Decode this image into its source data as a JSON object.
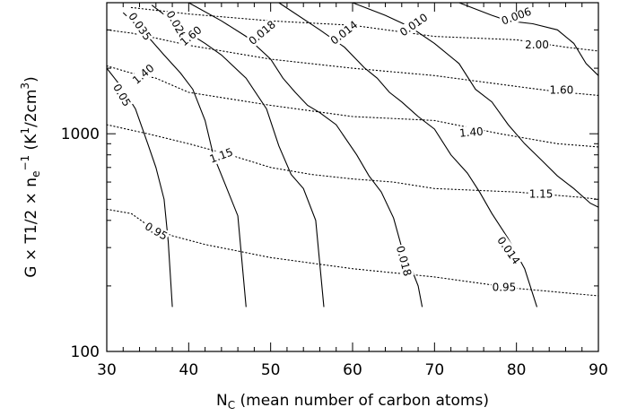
{
  "chart_data": {
    "type": "contour",
    "x_axis": {
      "label_main": "N",
      "label_sub": "C",
      "label_rest": " (mean number of carbon atoms)",
      "range": [
        30,
        90
      ],
      "ticks": [
        30,
        40,
        50,
        60,
        70,
        80,
        90
      ],
      "tick_labels": [
        "30",
        "40",
        "50",
        "60",
        "70",
        "80",
        "90"
      ]
    },
    "y_axis": {
      "label_main": "G × T1/2 × n",
      "label_sub": "e",
      "label_sup1": "−1",
      "label_mid": " (K",
      "label_sup2": "1",
      "label_tail": "/2cm",
      "label_sup3": "3",
      "label_end": ")",
      "scale": "log",
      "range": [
        100,
        4000
      ],
      "ticks": [
        100,
        1000
      ],
      "tick_labels": [
        "100",
        "1000"
      ]
    },
    "series": [
      {
        "style": "solid",
        "label": "0.05",
        "points": [
          [
            30,
            2000
          ],
          [
            32,
            1600
          ],
          [
            33.5,
            1300
          ],
          [
            35,
            900
          ],
          [
            36,
            700
          ],
          [
            37,
            500
          ],
          [
            37.5,
            320
          ],
          [
            38,
            160
          ]
        ],
        "label_at": [
          31.8,
          1500
        ],
        "label_rot": 60
      },
      {
        "style": "solid",
        "label": "0.035",
        "points": [
          [
            32,
            3600
          ],
          [
            35,
            2800
          ],
          [
            37,
            2300
          ],
          [
            39,
            1900
          ],
          [
            40.5,
            1600
          ],
          [
            42,
            1150
          ],
          [
            43,
            800
          ],
          [
            44.5,
            580
          ],
          [
            46,
            420
          ],
          [
            47,
            160
          ]
        ],
        "label_at": [
          34,
          3100
        ],
        "label_rot": 55
      },
      {
        "style": "solid",
        "label": "0.026",
        "points": [
          [
            35.5,
            3900
          ],
          [
            38,
            3300
          ],
          [
            40,
            2900
          ],
          [
            42,
            2600
          ],
          [
            44,
            2300
          ],
          [
            47,
            1800
          ],
          [
            49.5,
            1300
          ],
          [
            51,
            880
          ],
          [
            52.5,
            650
          ],
          [
            54,
            560
          ],
          [
            55.5,
            400
          ],
          [
            56.5,
            160
          ]
        ],
        "label_at": [
          38.5,
          3150
        ],
        "label_rot": 60
      },
      {
        "style": "solid",
        "label": "0.018",
        "points": [
          [
            40,
            4000
          ],
          [
            44,
            3300
          ],
          [
            47,
            2800
          ],
          [
            50,
            2200
          ],
          [
            51.5,
            1800
          ],
          [
            53,
            1550
          ],
          [
            54.5,
            1350
          ],
          [
            56,
            1250
          ],
          [
            58,
            1100
          ],
          [
            60.5,
            800
          ],
          [
            62,
            640
          ],
          [
            63.5,
            540
          ],
          [
            65,
            410
          ],
          [
            66,
            300
          ],
          [
            67,
            250
          ],
          [
            68,
            200
          ],
          [
            68.5,
            160
          ]
        ],
        "label_at": [
          49,
          2900
        ],
        "label_rot": -40,
        "label2": "0.018",
        "label2_at": [
          66.2,
          260
        ],
        "label2_rot": 75
      },
      {
        "style": "solid",
        "label": "0.014",
        "points": [
          [
            51,
            4000
          ],
          [
            56,
            3000
          ],
          [
            59,
            2500
          ],
          [
            61.5,
            2000
          ],
          [
            63,
            1800
          ],
          [
            64.5,
            1550
          ],
          [
            66,
            1400
          ],
          [
            68,
            1200
          ],
          [
            70,
            1050
          ],
          [
            72,
            800
          ],
          [
            74,
            660
          ],
          [
            75.5,
            540
          ],
          [
            77,
            430
          ],
          [
            79,
            330
          ],
          [
            81,
            240
          ],
          [
            82.5,
            160
          ]
        ],
        "label_at": [
          59,
          2900
        ],
        "label_rot": -38,
        "label2": "0.014",
        "label2_at": [
          79,
          290
        ],
        "label2_rot": 55
      },
      {
        "style": "solid",
        "label": "0.010",
        "points": [
          [
            60,
            4000
          ],
          [
            64,
            3500
          ],
          [
            67,
            3100
          ],
          [
            70,
            2600
          ],
          [
            73,
            2100
          ],
          [
            75,
            1600
          ],
          [
            77,
            1400
          ],
          [
            79,
            1100
          ],
          [
            81,
            900
          ],
          [
            83,
            760
          ],
          [
            85,
            640
          ],
          [
            87,
            560
          ],
          [
            89,
            480
          ],
          [
            90,
            460
          ]
        ],
        "label_at": [
          67.5,
          3150
        ],
        "label_rot": -35
      },
      {
        "style": "solid",
        "label": "0.006",
        "points": [
          [
            73,
            4000
          ],
          [
            77,
            3500
          ],
          [
            79,
            3300
          ],
          [
            82,
            3200
          ],
          [
            85,
            3000
          ],
          [
            87,
            2600
          ],
          [
            88.5,
            2100
          ],
          [
            90,
            1850
          ]
        ],
        "label_at": [
          80,
          3450
        ],
        "label_rot": -20
      },
      {
        "style": "dotted",
        "label": "2.00",
        "points": [
          [
            33,
            3800
          ],
          [
            40,
            3550
          ],
          [
            50,
            3300
          ],
          [
            60,
            3150
          ],
          [
            70,
            2800
          ],
          [
            80,
            2700
          ],
          [
            86,
            2500
          ],
          [
            90,
            2400
          ]
        ],
        "label_at": [
          82.5,
          2550
        ],
        "label_rot": 0
      },
      {
        "style": "dotted",
        "label": "1.60",
        "points": [
          [
            30,
            3000
          ],
          [
            33,
            2900
          ],
          [
            36,
            2750
          ],
          [
            40,
            2550
          ],
          [
            50,
            2200
          ],
          [
            60,
            2000
          ],
          [
            70,
            1850
          ],
          [
            80,
            1650
          ],
          [
            85,
            1560
          ],
          [
            90,
            1500
          ]
        ],
        "label_at": [
          40.3,
          2800
        ],
        "label_rot": -40,
        "label2": "1.60",
        "label2_at": [
          85.5,
          1580
        ],
        "label2_rot": 0
      },
      {
        "style": "dotted",
        "label": "1.40",
        "points": [
          [
            30,
            2050
          ],
          [
            33,
            1900
          ],
          [
            36,
            1800
          ],
          [
            40,
            1550
          ],
          [
            50,
            1350
          ],
          [
            60,
            1200
          ],
          [
            70,
            1150
          ],
          [
            78,
            1000
          ],
          [
            85,
            900
          ],
          [
            90,
            870
          ]
        ],
        "label_at": [
          34.5,
          1870
        ],
        "label_rot": -40,
        "label2": "1.40",
        "label2_at": [
          74.5,
          1010
        ],
        "label2_rot": -5
      },
      {
        "style": "dotted",
        "label": "1.15",
        "points": [
          [
            30,
            1100
          ],
          [
            35,
            1000
          ],
          [
            40,
            900
          ],
          [
            45,
            800
          ],
          [
            50,
            700
          ],
          [
            55,
            650
          ],
          [
            60,
            620
          ],
          [
            65,
            600
          ],
          [
            70,
            560
          ],
          [
            80,
            540
          ],
          [
            88,
            510
          ],
          [
            90,
            500
          ]
        ],
        "label_at": [
          44,
          790
        ],
        "label_rot": -20,
        "label2": "1.15",
        "label2_at": [
          83,
          525
        ],
        "label2_rot": 0
      },
      {
        "style": "dotted",
        "label": "0.95",
        "points": [
          [
            30,
            450
          ],
          [
            33,
            430
          ],
          [
            35,
            380
          ],
          [
            38,
            340
          ],
          [
            42,
            310
          ],
          [
            50,
            270
          ],
          [
            60,
            240
          ],
          [
            70,
            220
          ],
          [
            80,
            195
          ],
          [
            90,
            180
          ]
        ],
        "label_at": [
          36,
          355
        ],
        "label_rot": 30,
        "label2": "0.95",
        "label2_at": [
          78.5,
          196
        ],
        "label2_rot": 0
      }
    ]
  }
}
